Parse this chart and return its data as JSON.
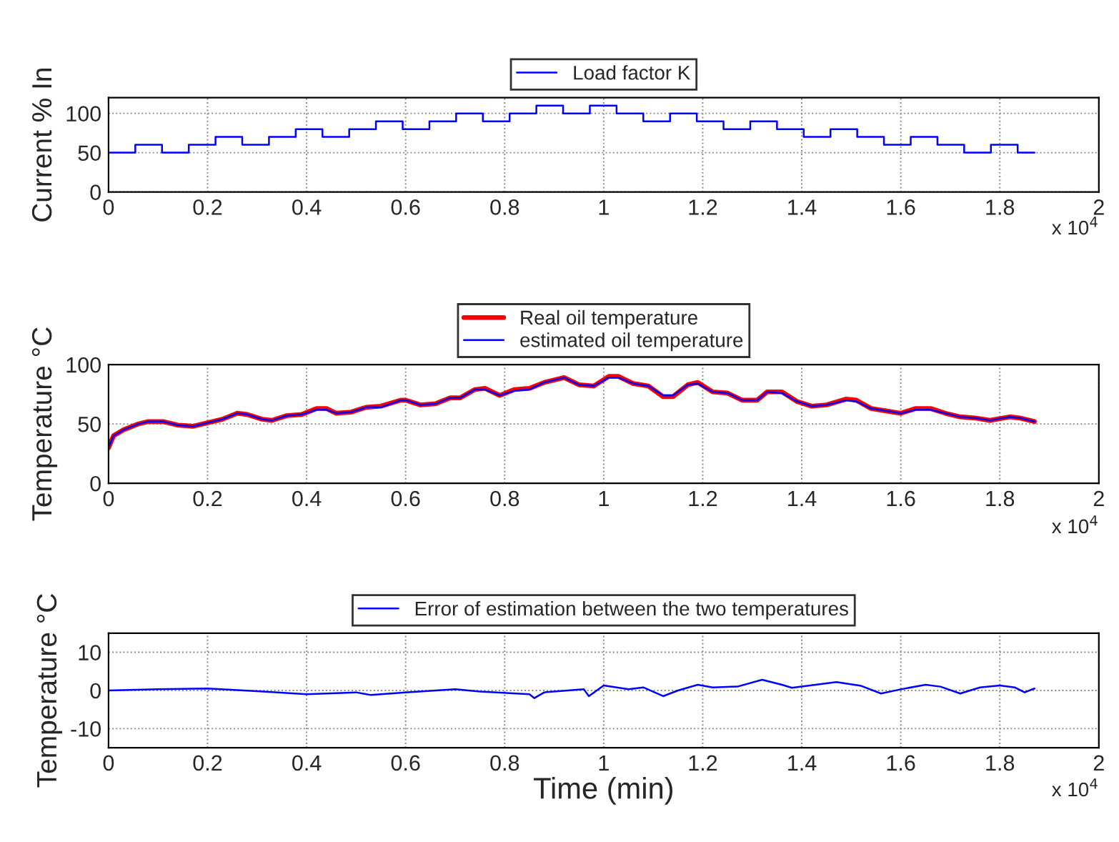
{
  "chart_data": [
    {
      "type": "step",
      "ylabel": "Current % In",
      "xlim": [
        0,
        2
      ],
      "ylim": [
        0,
        120
      ],
      "yticks": [
        0,
        50,
        100
      ],
      "xticks": [
        0,
        0.2,
        0.4,
        0.6,
        0.8,
        1,
        1.2,
        1.4,
        1.6,
        1.8,
        2
      ],
      "grid": true,
      "legend": "top",
      "annotations": [
        "x 10$^{4}$"
      ],
      "series": [
        {
          "name": "Load factor K",
          "color": "#0000ff",
          "x": [
            0,
            0.054,
            0.108,
            0.162,
            0.216,
            0.27,
            0.324,
            0.378,
            0.432,
            0.486,
            0.54,
            0.594,
            0.648,
            0.702,
            0.756,
            0.81,
            0.864,
            0.918,
            0.972,
            1.026,
            1.08,
            1.134,
            1.188,
            1.242,
            1.296,
            1.35,
            1.404,
            1.458,
            1.512,
            1.566,
            1.62,
            1.674,
            1.728,
            1.782,
            1.836,
            1.87
          ],
          "values": [
            50,
            60,
            50,
            60,
            70,
            60,
            70,
            80,
            70,
            80,
            90,
            80,
            90,
            100,
            90,
            100,
            110,
            100,
            110,
            100,
            90,
            100,
            90,
            80,
            90,
            80,
            70,
            80,
            70,
            60,
            70,
            60,
            50,
            60,
            50,
            50
          ]
        }
      ]
    },
    {
      "type": "line",
      "ylabel": "Temperature °C",
      "xlim": [
        0,
        2
      ],
      "ylim": [
        0,
        100
      ],
      "yticks": [
        0,
        50,
        100
      ],
      "xticks": [
        0,
        0.2,
        0.4,
        0.6,
        0.8,
        1,
        1.2,
        1.4,
        1.6,
        1.8,
        2
      ],
      "grid": true,
      "legend": "top",
      "annotations": [
        "x 10$^{4}$"
      ],
      "x": [
        0,
        0.01,
        0.03,
        0.06,
        0.08,
        0.11,
        0.14,
        0.17,
        0.2,
        0.23,
        0.26,
        0.28,
        0.31,
        0.33,
        0.36,
        0.39,
        0.42,
        0.44,
        0.46,
        0.49,
        0.52,
        0.55,
        0.59,
        0.6,
        0.63,
        0.66,
        0.69,
        0.71,
        0.74,
        0.76,
        0.79,
        0.82,
        0.85,
        0.88,
        0.92,
        0.95,
        0.98,
        1.01,
        1.03,
        1.06,
        1.09,
        1.12,
        1.14,
        1.17,
        1.19,
        1.22,
        1.25,
        1.28,
        1.31,
        1.33,
        1.36,
        1.39,
        1.42,
        1.45,
        1.49,
        1.51,
        1.54,
        1.57,
        1.6,
        1.63,
        1.66,
        1.69,
        1.72,
        1.75,
        1.78,
        1.82,
        1.84,
        1.87
      ],
      "series": [
        {
          "name": "Real oil temperature",
          "color": "#ff0000",
          "values": [
            30,
            40,
            45,
            50,
            52,
            52,
            49,
            48,
            51,
            54,
            59,
            58,
            54,
            53,
            57,
            58,
            63,
            63,
            59,
            60,
            64,
            65,
            70,
            70,
            66,
            67,
            72,
            72,
            79,
            80,
            74,
            79,
            80,
            85,
            89,
            83,
            82,
            90,
            90,
            84,
            82,
            73,
            73,
            83,
            85,
            77,
            76,
            70,
            70,
            77,
            77,
            69,
            65,
            66,
            71,
            70,
            63,
            61,
            59,
            63,
            63,
            59,
            56,
            55,
            53,
            56,
            55,
            52
          ]
        },
        {
          "name": "estimated oil temperature",
          "color": "#0000ff",
          "values": [
            30,
            40,
            45,
            50,
            52,
            52,
            49,
            48,
            51,
            54,
            59,
            58,
            54,
            53,
            57,
            58,
            62,
            62,
            59,
            60,
            64,
            64,
            70,
            70,
            66,
            67,
            72,
            72,
            79,
            79,
            74,
            78,
            79,
            85,
            89,
            83,
            82,
            89,
            89,
            84,
            82,
            74,
            74,
            83,
            84,
            77,
            76,
            70,
            70,
            77,
            76,
            69,
            65,
            66,
            70,
            69,
            63,
            61,
            59,
            62,
            62,
            59,
            56,
            55,
            53,
            56,
            55,
            52
          ]
        }
      ]
    },
    {
      "type": "line",
      "ylabel": "Temperature °C",
      "xlabel": "Time (min)",
      "xlim": [
        0,
        2
      ],
      "ylim": [
        -15,
        15
      ],
      "yticks": [
        -10,
        0,
        10
      ],
      "xticks": [
        0,
        0.2,
        0.4,
        0.6,
        0.8,
        1,
        1.2,
        1.4,
        1.6,
        1.8,
        2
      ],
      "grid": true,
      "legend": "top",
      "annotations": [
        "x 10$^{4}$"
      ],
      "series": [
        {
          "name": "Error of estimation between the two temperatures",
          "color": "#0000ff",
          "x": [
            0,
            0.1,
            0.2,
            0.3,
            0.4,
            0.5,
            0.53,
            0.6,
            0.7,
            0.75,
            0.85,
            0.86,
            0.88,
            0.96,
            0.97,
            1.0,
            1.05,
            1.08,
            1.12,
            1.15,
            1.19,
            1.22,
            1.27,
            1.32,
            1.36,
            1.38,
            1.47,
            1.52,
            1.56,
            1.6,
            1.65,
            1.68,
            1.72,
            1.76,
            1.8,
            1.83,
            1.85,
            1.87
          ],
          "values": [
            0,
            0.3,
            0.5,
            -0.2,
            -1,
            -0.5,
            -1.2,
            -0.5,
            0.3,
            -0.3,
            -1,
            -2,
            -0.5,
            0.3,
            -1.5,
            1.3,
            0.3,
            0.8,
            -1.5,
            0,
            1.5,
            0.8,
            1,
            2.8,
            1.5,
            0.7,
            2.2,
            1.2,
            -0.8,
            0.3,
            1.5,
            1,
            -0.8,
            0.8,
            1.3,
            0.8,
            -0.5,
            0.5
          ]
        }
      ]
    }
  ]
}
